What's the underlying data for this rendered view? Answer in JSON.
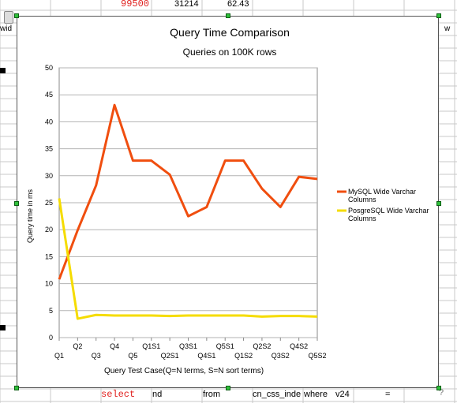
{
  "sheet": {
    "top_row": [
      "99500",
      "31214",
      "62.43"
    ],
    "left_col_label": "wid",
    "right_col_label": "w",
    "bottom_row": [
      "select",
      "nd",
      "from",
      "cn_css_inde",
      "where",
      "v24",
      "="
    ],
    "bottom_right_mark": "?",
    "grid_color": "#c9c9c9",
    "red_text_color": "#e0201e"
  },
  "chart_data": {
    "type": "line",
    "title": "Query Time Comparison",
    "subtitle": "Queries on 100K rows",
    "xlabel": "Query Test Case(Q=N terms, S=N sort terms)",
    "ylabel": "Query time in ms",
    "ylim": [
      0,
      50
    ],
    "yticks": [
      0,
      5,
      10,
      15,
      20,
      25,
      30,
      35,
      40,
      45,
      50
    ],
    "grid": true,
    "legend_position": "right",
    "categories": [
      "Q1",
      "Q2",
      "Q3",
      "Q4",
      "Q5",
      "Q1S1",
      "Q2S1",
      "Q3S1",
      "Q4S1",
      "Q5S1",
      "Q1S2",
      "Q2S2",
      "Q3S2",
      "Q4S2",
      "Q5S2"
    ],
    "series": [
      {
        "name": "MySQL Wide Varchar Columns",
        "color": "#f04e0f",
        "values": [
          10.8,
          19.9,
          28.2,
          43.1,
          32.8,
          32.8,
          30.2,
          22.5,
          24.2,
          32.8,
          32.8,
          27.6,
          24.2,
          29.8,
          29.4
        ]
      },
      {
        "name": "PosgreSQL Wide Varchar Columns",
        "color": "#f5dc00",
        "values": [
          25.8,
          3.5,
          4.2,
          4.1,
          4.1,
          4.1,
          4.0,
          4.1,
          4.1,
          4.1,
          4.1,
          3.9,
          4.0,
          4.0,
          3.9
        ]
      }
    ]
  }
}
